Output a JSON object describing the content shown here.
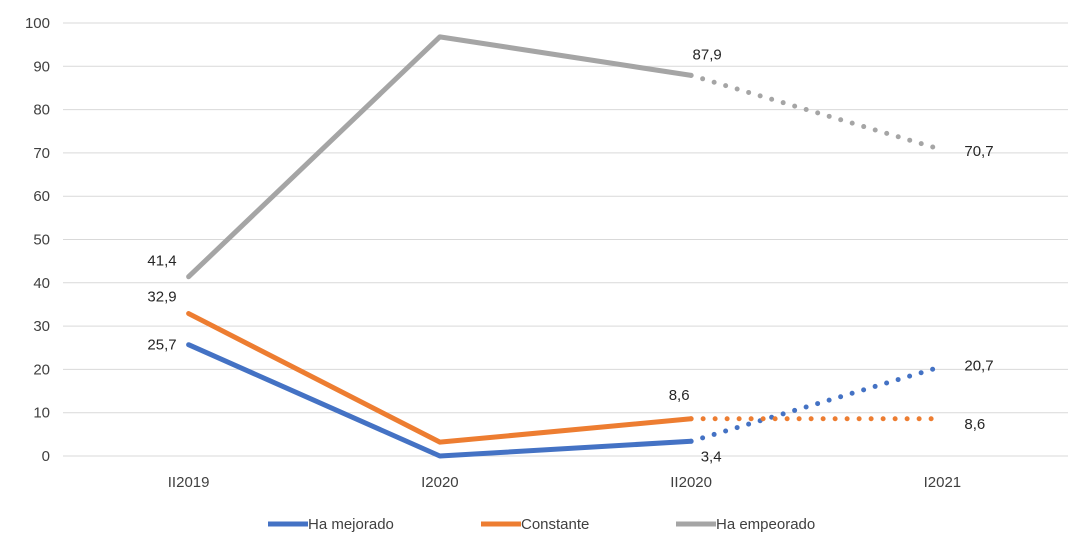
{
  "chart_data": {
    "type": "line",
    "categories": [
      "II2019",
      "I2020",
      "II2020",
      "I2021"
    ],
    "ylim": [
      0,
      100
    ],
    "yticks": [
      0,
      10,
      20,
      30,
      40,
      50,
      60,
      70,
      80,
      90,
      100
    ],
    "grid": true,
    "legend_position": "bottom",
    "series": [
      {
        "name": "Ha mejorado",
        "color": "#4472c4",
        "values": [
          25.7,
          0,
          3.4,
          20.7
        ],
        "projected_from_index": 2,
        "labels": [
          "25,7",
          null,
          "3,4",
          "20,7"
        ]
      },
      {
        "name": "Constante",
        "color": "#ed7d31",
        "values": [
          32.9,
          3.2,
          8.6,
          8.6
        ],
        "projected_from_index": 2,
        "labels": [
          "32,9",
          null,
          "8,6",
          "8,6"
        ]
      },
      {
        "name": "Ha empeorado",
        "color": "#a5a5a5",
        "values": [
          41.4,
          96.8,
          87.9,
          70.7
        ],
        "projected_from_index": 2,
        "labels": [
          "41,4",
          null,
          "87,9",
          "70,7"
        ]
      }
    ]
  }
}
